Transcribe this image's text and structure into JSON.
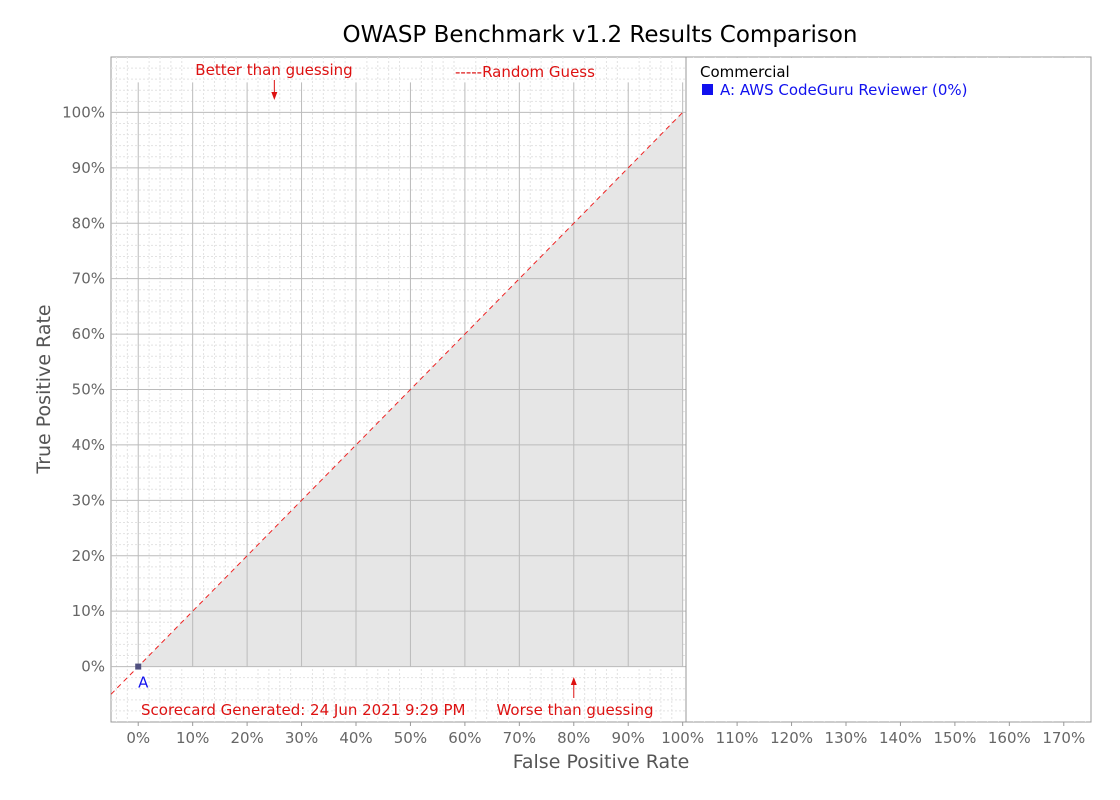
{
  "chart_data": {
    "type": "scatter",
    "title": "OWASP Benchmark v1.2 Results Comparison",
    "xlabel": "False Positive Rate",
    "ylabel": "True Positive Rate",
    "xlim": [
      -5,
      175
    ],
    "ylim": [
      -10,
      110
    ],
    "x_ticks": [
      0,
      10,
      20,
      30,
      40,
      50,
      60,
      70,
      80,
      90,
      100,
      110,
      120,
      130,
      140,
      150,
      160,
      170
    ],
    "y_ticks": [
      0,
      10,
      20,
      30,
      40,
      50,
      60,
      70,
      80,
      90,
      100
    ],
    "x_tick_labels": [
      "0%",
      "10%",
      "20%",
      "30%",
      "40%",
      "50%",
      "60%",
      "70%",
      "80%",
      "90%",
      "100%",
      "110%",
      "120%",
      "130%",
      "140%",
      "150%",
      "160%",
      "170%"
    ],
    "y_tick_labels": [
      "0%",
      "10%",
      "20%",
      "30%",
      "40%",
      "50%",
      "60%",
      "70%",
      "80%",
      "90%",
      "100%"
    ],
    "grid": true,
    "random_guess_line": {
      "label": "-----Random Guess",
      "from": [
        -5,
        -5
      ],
      "to": [
        100,
        100
      ],
      "color": "#ee2222"
    },
    "worse_region": {
      "color": "#e6e6e6",
      "from_x": 0,
      "to_x": 100
    },
    "series": [
      {
        "name": "A: AWS CodeGuru Reviewer (0%)",
        "label": "A",
        "x": [
          0
        ],
        "y": [
          0
        ],
        "color": "#1111ee"
      }
    ],
    "legend": {
      "position": "top-right",
      "heading": "Commercial",
      "entries": [
        "A: AWS CodeGuru Reviewer (0%)"
      ]
    },
    "annotations": {
      "better": {
        "text": "Better than guessing",
        "x": 25,
        "arrow": "down"
      },
      "worse": {
        "text": "Worse than guessing",
        "x": 80,
        "arrow": "up"
      },
      "generated": "Scorecard Generated: 24 Jun 2021 9:29 PM"
    },
    "colors": {
      "annotation": "#dd1111",
      "point_marker": "#505080",
      "grid_major": "#bbbbbb",
      "grid_minor": "#e2e2e2"
    }
  }
}
